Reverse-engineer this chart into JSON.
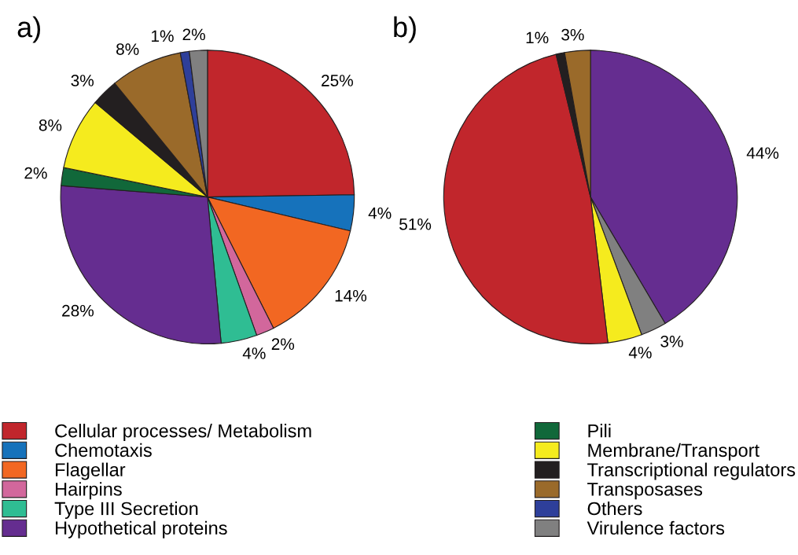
{
  "chart_data": [
    {
      "type": "pie",
      "title": "a)",
      "categories": [
        "Cellular processes/ Metabolism",
        "Chemotaxis",
        "Flagellar",
        "Hairpins",
        "Type III Secretion",
        "Hypothetical proteins",
        "Pili",
        "Membrane/Transport",
        "Transcriptional regulators",
        "Transposases",
        "Others",
        "Virulence factors"
      ],
      "values": [
        25,
        4,
        14,
        2,
        4,
        28,
        2,
        8,
        3,
        8,
        1,
        2
      ],
      "value_labels": [
        "25%",
        "4%",
        "14%",
        "2%",
        "4%",
        "28%",
        "2%",
        "8%",
        "3%",
        "8%",
        "1%",
        "2%"
      ],
      "colors": [
        "#c1262c",
        "#1672bb",
        "#f26722",
        "#d2679c",
        "#2fbd93",
        "#652d90",
        "#11683a",
        "#f5eb1e",
        "#231f20",
        "#9a6a2a",
        "#2e3f9a",
        "#808080"
      ],
      "legend": "bottom"
    },
    {
      "type": "pie",
      "title": "b)",
      "categories": [
        null,
        null,
        null,
        null,
        null,
        null
      ],
      "values": [
        44,
        3,
        4,
        51,
        1,
        3
      ],
      "value_labels": [
        "44%",
        "3%",
        "4%",
        "51%",
        "1%",
        "3%"
      ],
      "colors": [
        "#652d90",
        "#808080",
        "#f5eb1e",
        "#c1262c",
        "#231f20",
        "#9a6a2a"
      ]
    }
  ]
}
